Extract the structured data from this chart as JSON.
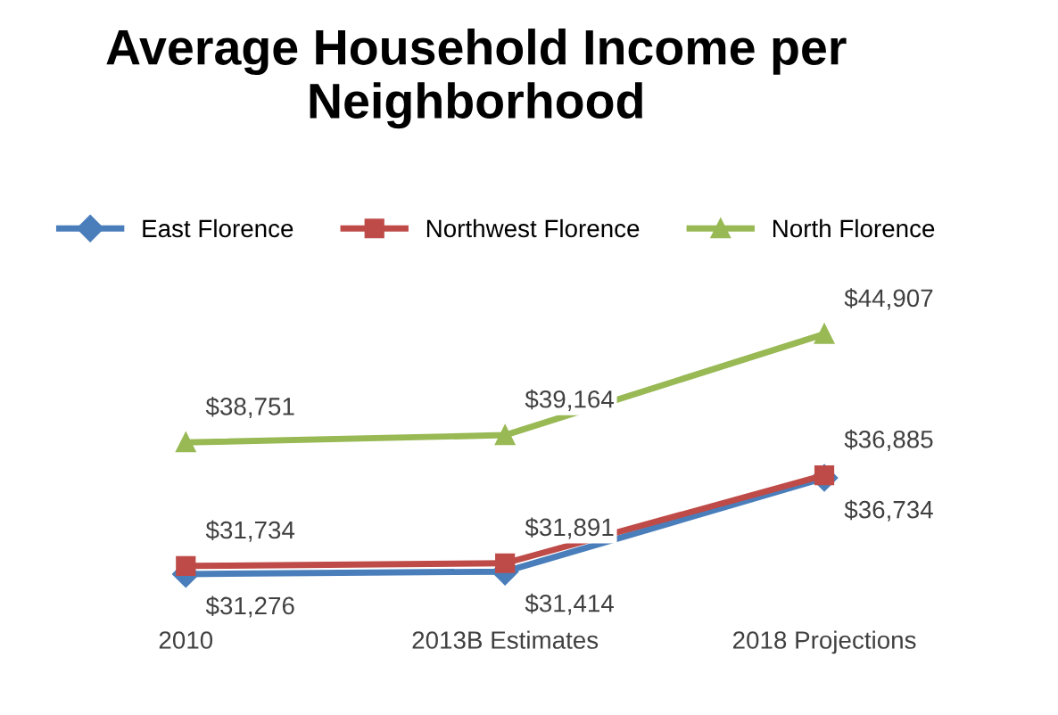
{
  "chart_data": {
    "type": "line",
    "title": "Average Household Income per\nNeighborhood",
    "categories": [
      "2010",
      "2013B Estimates",
      "2018 Projections"
    ],
    "series": [
      {
        "name": "East Florence",
        "color": "#4a7ebb",
        "marker": "diamond",
        "values": [
          31276,
          31414,
          36734
        ],
        "value_labels": [
          "$31,276",
          "$31,414",
          "$36,734"
        ]
      },
      {
        "name": "Northwest Florence",
        "color": "#be4b48",
        "marker": "square",
        "values": [
          31734,
          31891,
          36885
        ],
        "value_labels": [
          "$31,734",
          "$31,891",
          "$36,885"
        ]
      },
      {
        "name": "North Florence",
        "color": "#98b954",
        "marker": "triangle",
        "values": [
          38751,
          39164,
          44907
        ],
        "value_labels": [
          "$38,751",
          "$39,164",
          "$44,907"
        ]
      }
    ],
    "legend": "top",
    "grid": false
  }
}
